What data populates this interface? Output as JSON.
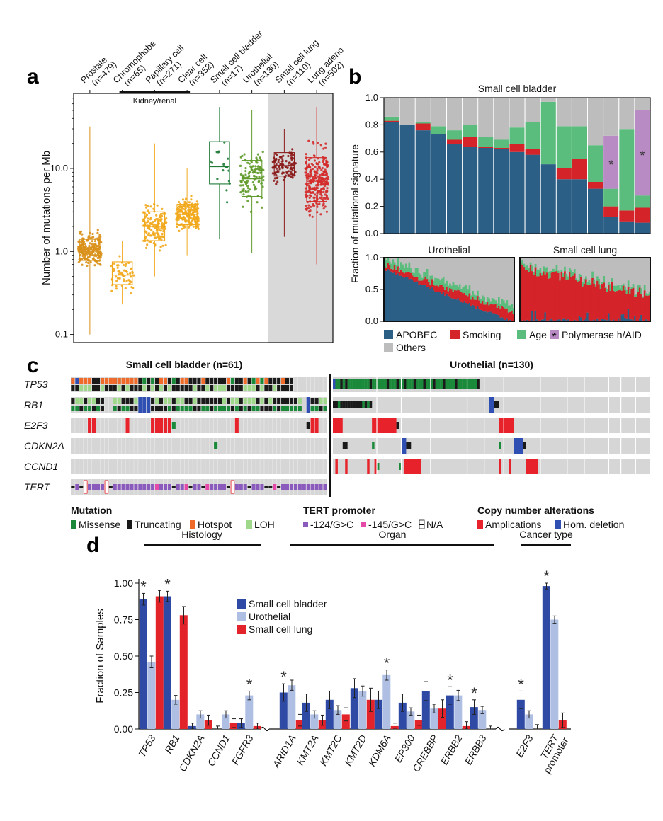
{
  "panels": {
    "a": "a",
    "b": "b",
    "c": "c",
    "d": "d"
  },
  "colors": {
    "prostate": "#d9911b",
    "kidney": "#f2a81c",
    "scb": "#1f7a36",
    "urothelial": "#5f9a2a",
    "sclc": "#8b1a1a",
    "lungadeno": "#d42a2a",
    "apobec": "#2c5f86",
    "smoking": "#d5232a",
    "age": "#5bbd7d",
    "poly": "#b98bc4",
    "others": "#bdbdbd",
    "missense": "#1a8a3a",
    "truncating": "#1a1a1a",
    "hotspot": "#f06a2a",
    "loh": "#9fd88a",
    "tert124": "#8a5bbd",
    "tert145": "#e64aa8",
    "amp": "#e8222a",
    "homdel": "#2f4fb2",
    "bar_scb": "#2f4aa5",
    "bar_uro": "#aebfe3",
    "bar_sclc": "#e3232a"
  },
  "chart_data": [
    {
      "id": "a",
      "type": "scatter",
      "ylabel": "Number of mutations per Mb",
      "yscale": "log",
      "ylim": [
        0.08,
        80
      ],
      "ticks": [
        "0.1",
        "1.0",
        "10.0"
      ],
      "tick_values": [
        0.1,
        1.0,
        10.0
      ],
      "bracket_label": "Kidney/renal",
      "groups": [
        {
          "label": "Prostate (n=479)",
          "l1": "Prostate",
          "l2": "(n=479)",
          "median": 1.05,
          "q1": 0.78,
          "q3": 1.4,
          "lo": 0.1,
          "hi": 32,
          "n": 220,
          "color": "prostate"
        },
        {
          "label": "Chromophobe (n=65)",
          "l1": "Chromophobe",
          "l2": "(n=65)",
          "median": 0.52,
          "q1": 0.4,
          "q3": 0.75,
          "lo": 0.23,
          "hi": 1.35,
          "n": 60,
          "color": "kidney"
        },
        {
          "label": "Papillary cell (n=271)",
          "l1": "Papillary cell",
          "l2": "(n=271)",
          "median": 2.0,
          "q1": 1.35,
          "q3": 3.0,
          "lo": 0.5,
          "hi": 20,
          "n": 140,
          "color": "kidney"
        },
        {
          "label": "Clear cell (n=352)",
          "l1": "Clear cell",
          "l2": "(n=352)",
          "median": 2.8,
          "q1": 2.1,
          "q3": 3.7,
          "lo": 0.9,
          "hi": 10,
          "n": 200,
          "color": "kidney"
        },
        {
          "label": "Small cell bladder (n=17)",
          "l1": "Small cell bladder",
          "l2": "(n=17)",
          "median": 10.5,
          "q1": 6.5,
          "q3": 21,
          "lo": 1.4,
          "hi": 55,
          "n": 17,
          "color": "scb"
        },
        {
          "label": "Urothelial (n=130)",
          "l1": "Urothelial",
          "l2": "(n=130)",
          "median": 7.5,
          "q1": 4.6,
          "q3": 12.5,
          "lo": 0.95,
          "hi": 50,
          "n": 120,
          "color": "urothelial"
        },
        {
          "label": "Small cell lung (n=110)",
          "l1": "Small cell lung",
          "l2": "(n=110)",
          "median": 10.8,
          "q1": 8.1,
          "q3": 15.5,
          "lo": 1.5,
          "hi": 30,
          "n": 105,
          "color": "sclc"
        },
        {
          "label": "Lung adeno (n=502)",
          "l1": "Lung adeno",
          "l2": "(n=502)",
          "median": 7.0,
          "q1": 4.0,
          "q3": 13.5,
          "lo": 0.7,
          "hi": 55,
          "n": 260,
          "color": "lungadeno"
        }
      ]
    },
    {
      "id": "b",
      "type": "bar",
      "title": "Small cell bladder",
      "ylabel": "Fraction of mutational signature",
      "ylim": [
        0,
        1
      ],
      "ticks": [
        "0.0",
        "0.2",
        "0.4",
        "0.6",
        "0.8",
        "1.0"
      ],
      "tick_values": [
        0,
        0.2,
        0.4,
        0.6,
        0.8,
        1.0
      ],
      "stack_order": [
        "APOBEC",
        "Smoking",
        "Age",
        "Polymerase h/AID",
        "Others"
      ],
      "samples": [
        {
          "APOBEC": 0.82,
          "Smoking": 0.01,
          "Age": 0.03,
          "Polymerase h/AID": 0,
          "Others": 0.14
        },
        {
          "APOBEC": 0.8,
          "Smoking": 0,
          "Age": 0,
          "Polymerase h/AID": 0,
          "Others": 0.2
        },
        {
          "APOBEC": 0.76,
          "Smoking": 0.05,
          "Age": 0.01,
          "Polymerase h/AID": 0,
          "Others": 0.18
        },
        {
          "APOBEC": 0.73,
          "Smoking": 0,
          "Age": 0.06,
          "Polymerase h/AID": 0,
          "Others": 0.21
        },
        {
          "APOBEC": 0.66,
          "Smoking": 0.03,
          "Age": 0.07,
          "Polymerase h/AID": 0,
          "Others": 0.24
        },
        {
          "APOBEC": 0.64,
          "Smoking": 0.07,
          "Age": 0.09,
          "Polymerase h/AID": 0,
          "Others": 0.2
        },
        {
          "APOBEC": 0.63,
          "Smoking": 0.01,
          "Age": 0.07,
          "Polymerase h/AID": 0,
          "Others": 0.29
        },
        {
          "APOBEC": 0.62,
          "Smoking": 0.01,
          "Age": 0.06,
          "Polymerase h/AID": 0,
          "Others": 0.31
        },
        {
          "APOBEC": 0.6,
          "Smoking": 0.06,
          "Age": 0.12,
          "Polymerase h/AID": 0,
          "Others": 0.22
        },
        {
          "APOBEC": 0.58,
          "Smoking": 0.04,
          "Age": 0.2,
          "Polymerase h/AID": 0,
          "Others": 0.18
        },
        {
          "APOBEC": 0.51,
          "Smoking": 0,
          "Age": 0.46,
          "Polymerase h/AID": 0,
          "Others": 0.03
        },
        {
          "APOBEC": 0.4,
          "Smoking": 0.08,
          "Age": 0.31,
          "Polymerase h/AID": 0,
          "Others": 0.21
        },
        {
          "APOBEC": 0.4,
          "Smoking": 0.15,
          "Age": 0.24,
          "Polymerase h/AID": 0,
          "Others": 0.21
        },
        {
          "APOBEC": 0.33,
          "Smoking": 0.05,
          "Age": 0.27,
          "Polymerase h/AID": 0,
          "Others": 0.35
        },
        {
          "APOBEC": 0.12,
          "Smoking": 0.08,
          "Age": 0.13,
          "Polymerase h/AID": 0.39,
          "Others": 0.28
        },
        {
          "APOBEC": 0.09,
          "Smoking": 0.08,
          "Age": 0.6,
          "Polymerase h/AID": 0,
          "Others": 0.23
        },
        {
          "APOBEC": 0.08,
          "Smoking": 0.11,
          "Age": 0.09,
          "Polymerase h/AID": 0.63,
          "Others": 0.09
        }
      ],
      "star": "*",
      "star_samples": [
        14,
        16
      ],
      "legend": [
        "APOBEC",
        "Smoking",
        "Age",
        "Polymerase h/AID",
        "Others"
      ]
    },
    {
      "id": "b-inset",
      "type": "area",
      "panels": [
        {
          "title": "Urothelial",
          "n": 130
        },
        {
          "title": "Small cell lung",
          "n": 110
        }
      ],
      "ticks": [
        "0.0",
        "0.5",
        "1.0"
      ],
      "tick_values": [
        0,
        0.5,
        1.0
      ]
    },
    {
      "id": "c",
      "type": "heatmap",
      "groups": [
        {
          "title": "Small cell bladder (n=61)",
          "n": 61
        },
        {
          "title": "Urothelial (n=130)",
          "n": 130
        }
      ],
      "genes": [
        "TP53",
        "RB1",
        "E2F3",
        "CDKN2A",
        "CCND1",
        "TERT"
      ],
      "legend": {
        "mutation_title": "Mutation",
        "mutation": [
          "Missense",
          "Truncating",
          "Hotspot",
          "LOH"
        ],
        "tert_title": "TERT promoter",
        "tert": [
          "-124/G>C",
          "-145/G>C",
          "N/A"
        ],
        "cna_title": "Copy number alterations",
        "cna": [
          "Amplications",
          "Hom. deletion"
        ]
      }
    },
    {
      "id": "d",
      "type": "bar",
      "ylabel": "Fraction of Samples",
      "ylim": [
        0,
        1.0
      ],
      "ticks": [
        "0.00",
        "0.25",
        "0.50",
        "0.75",
        "1.00"
      ],
      "tick_values": [
        0,
        0.25,
        0.5,
        0.75,
        1.0
      ],
      "sections": [
        {
          "label": "Histology",
          "start": 0,
          "end": 4
        },
        {
          "label": "Organ",
          "start": 5,
          "end": 13
        },
        {
          "label": "Cancer type",
          "start": 14,
          "end": 15
        }
      ],
      "series": [
        {
          "name": "Small cell bladder",
          "color": "bar_scb"
        },
        {
          "name": "Urothelial",
          "color": "bar_uro"
        },
        {
          "name": "Small cell lung",
          "color": "bar_sclc"
        }
      ],
      "categories": [
        {
          "label": "TP53",
          "values": [
            0.89,
            0.46,
            0.91
          ],
          "err": [
            0.04,
            0.04,
            0.04
          ],
          "star": true
        },
        {
          "label": "RB1",
          "values": [
            0.91,
            0.2,
            0.78
          ],
          "err": [
            0.035,
            0.03,
            0.06
          ],
          "star": true
        },
        {
          "label": "CDKN2A",
          "values": [
            0.02,
            0.1,
            0.06
          ],
          "err": [
            0.02,
            0.025,
            0.035
          ],
          "star": false
        },
        {
          "label": "CCND1",
          "values": [
            0.0,
            0.1,
            0.04
          ],
          "err": [
            0.02,
            0.025,
            0.03
          ],
          "star": false
        },
        {
          "label": "FGFR3",
          "values": [
            0.04,
            0.23,
            0.02
          ],
          "err": [
            0.03,
            0.03,
            0.02
          ],
          "star": true,
          "star_series": 1
        },
        {
          "label": "ARID1A",
          "values": [
            0.25,
            0.3,
            0.06
          ],
          "err": [
            0.06,
            0.035,
            0.04
          ],
          "star": true
        },
        {
          "label": "KMT2A",
          "values": [
            0.18,
            0.1,
            0.06
          ],
          "err": [
            0.06,
            0.025,
            0.035
          ],
          "star": false
        },
        {
          "label": "KMT2C",
          "values": [
            0.2,
            0.13,
            0.1
          ],
          "err": [
            0.06,
            0.03,
            0.045
          ],
          "star": false
        },
        {
          "label": "KMT2D",
          "values": [
            0.28,
            0.26,
            0.2
          ],
          "err": [
            0.065,
            0.035,
            0.08
          ],
          "star": false
        },
        {
          "label": "KDM6A",
          "values": [
            0.2,
            0.37,
            0.02
          ],
          "err": [
            0.06,
            0.035,
            0.02
          ],
          "star": true,
          "star_series": 1
        },
        {
          "label": "EP300",
          "values": [
            0.18,
            0.12,
            0.06
          ],
          "err": [
            0.06,
            0.025,
            0.035
          ],
          "star": false
        },
        {
          "label": "CREBBP",
          "values": [
            0.26,
            0.14,
            0.14
          ],
          "err": [
            0.065,
            0.03,
            0.06
          ],
          "star": false
        },
        {
          "label": "ERBB2",
          "values": [
            0.23,
            0.23,
            0.02
          ],
          "err": [
            0.06,
            0.035,
            0.03
          ],
          "star": true
        },
        {
          "label": "ERBB3",
          "values": [
            0.15,
            0.13,
            0.0
          ],
          "err": [
            0.05,
            0.025,
            0.02
          ],
          "star": true
        },
        {
          "label": "E2F3",
          "values": [
            0.2,
            0.1,
            0.0
          ],
          "err": [
            0.06,
            0.025,
            0.03
          ],
          "star": true
        },
        {
          "label": "TERT promoter",
          "l1": "TERT",
          "l2": "promoter",
          "values": [
            0.98,
            0.75,
            0.06
          ],
          "err": [
            0.02,
            0.025,
            0.05
          ],
          "star": true
        }
      ],
      "star": "*"
    }
  ]
}
